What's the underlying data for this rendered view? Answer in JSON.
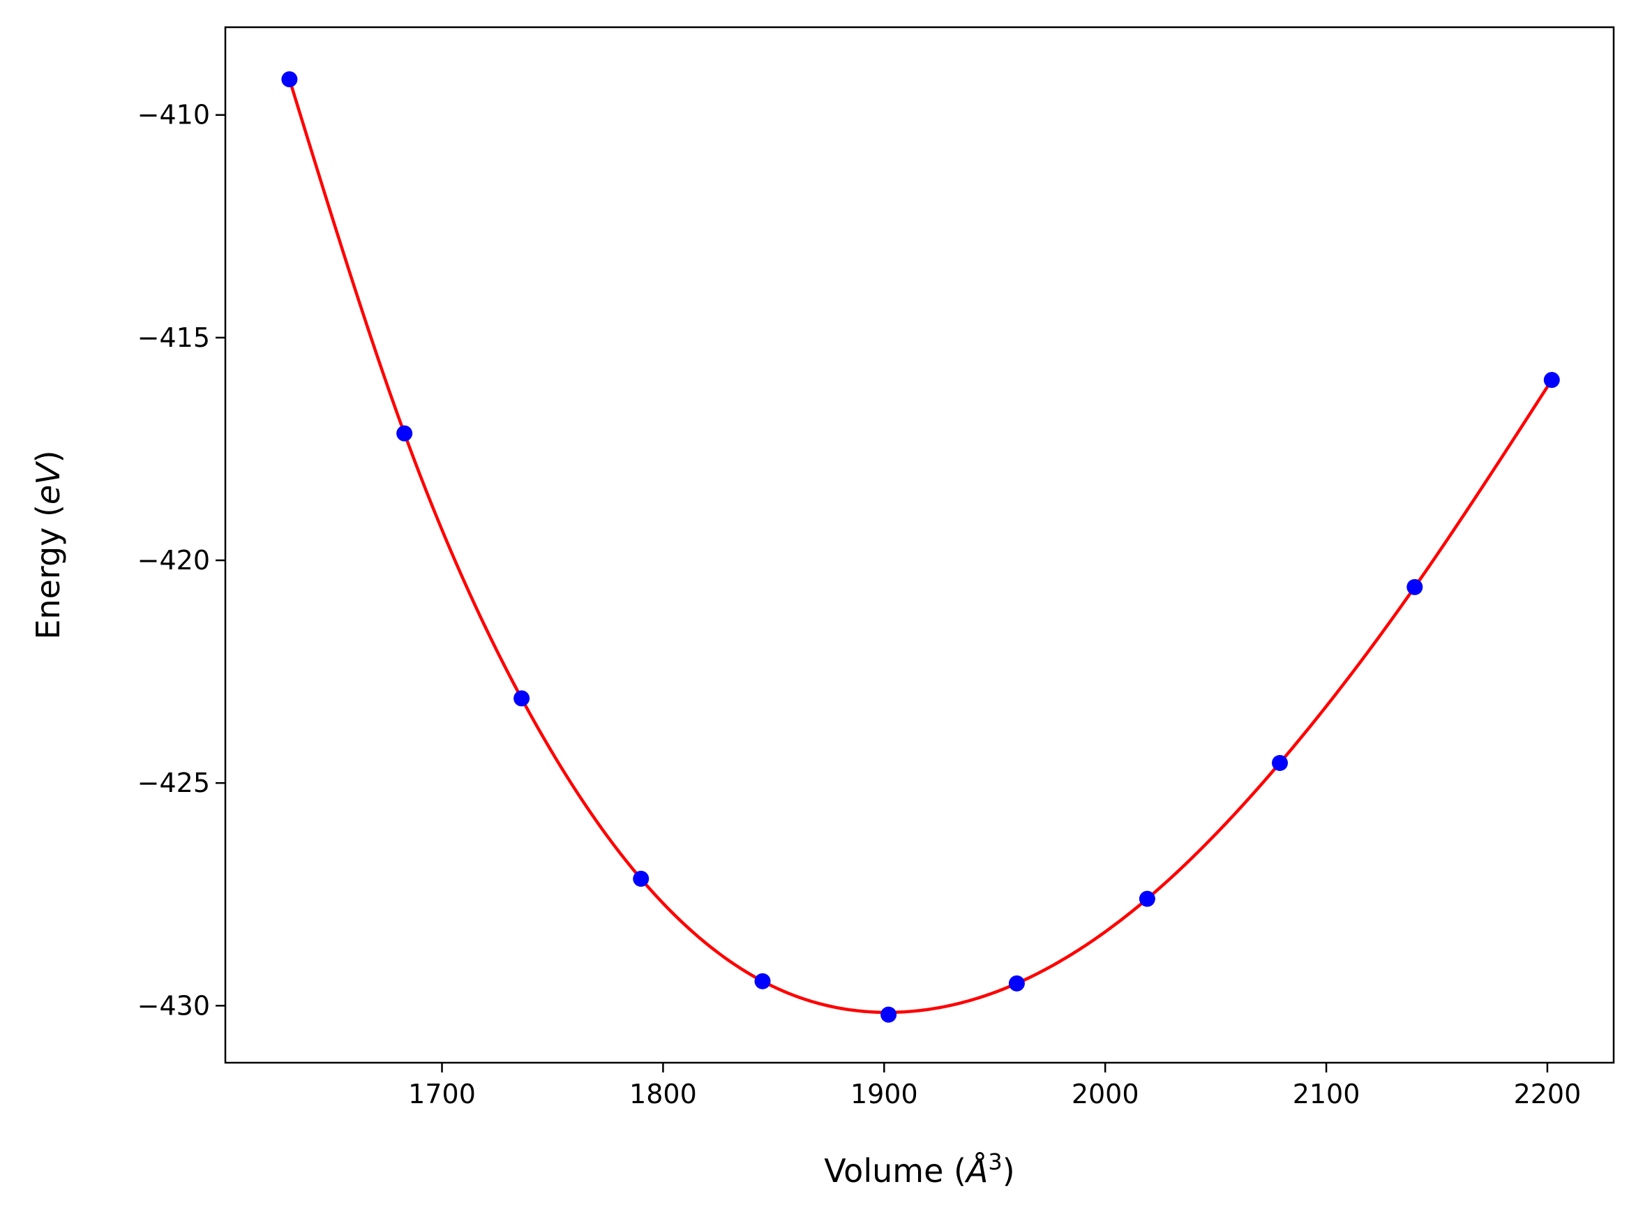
{
  "chart_data": {
    "type": "scatter",
    "title": "",
    "xlabel": {
      "prefix": "Volume (",
      "symbol": "Å",
      "sup": "3",
      "suffix": ")"
    },
    "ylabel": {
      "prefix": "Energy (",
      "unit": "eV",
      "suffix": ")"
    },
    "xlim": [
      1602,
      2230
    ],
    "ylim": [
      -431.28,
      -408.03
    ],
    "xticks": [
      1700,
      1800,
      1900,
      2000,
      2100,
      2200
    ],
    "yticks": [
      -410,
      -415,
      -420,
      -425,
      -430
    ],
    "xtick_labels": [
      "1700",
      "1800",
      "1900",
      "2000",
      "2100",
      "2200"
    ],
    "ytick_labels": [
      "−410",
      "−415",
      "−420",
      "−425",
      "−430"
    ],
    "grid": false,
    "series": [
      {
        "kind": "points",
        "color": "#0000ff",
        "x": [
          1631,
          1683,
          1736,
          1790,
          1845,
          1902,
          1960,
          2019,
          2079,
          2140,
          2202
        ],
        "y": [
          -409.2,
          -417.15,
          -423.1,
          -427.15,
          -429.45,
          -430.2,
          -429.5,
          -427.6,
          -424.55,
          -420.6,
          -415.95
        ]
      },
      {
        "kind": "fit-line",
        "color": "#ff0000",
        "x": [
          1631,
          1683,
          1736,
          1790,
          1845,
          1902,
          1960,
          2019,
          2079,
          2140,
          2202
        ],
        "y": [
          -409.2,
          -417.15,
          -423.1,
          -427.15,
          -429.45,
          -430.15,
          -429.5,
          -427.6,
          -424.55,
          -420.6,
          -415.95
        ]
      }
    ]
  }
}
